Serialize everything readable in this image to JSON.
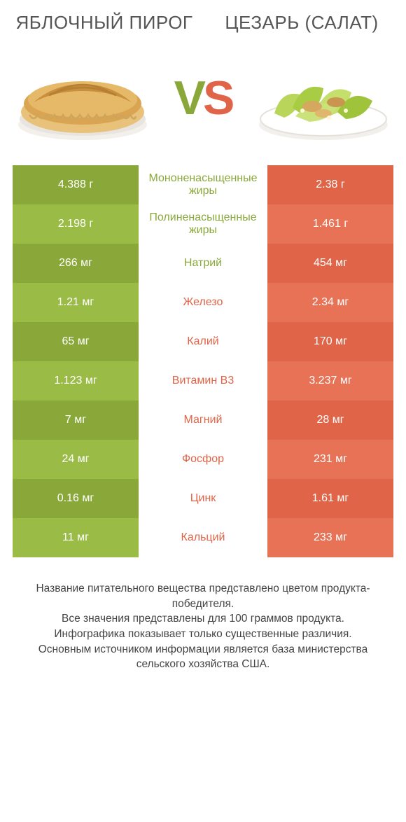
{
  "colors": {
    "green": "#8aa83a",
    "green_alt": "#9bbb47",
    "orange": "#e06448",
    "orange_alt": "#e87256",
    "mid_bg": "#ffffff",
    "text": "#444444",
    "title_text": "#555555"
  },
  "titles": {
    "left": "ЯБЛОЧНЫЙ ПИРОГ",
    "right": "ЦЕЗАРЬ (САЛАТ)"
  },
  "vs": {
    "v": "V",
    "s": "S"
  },
  "rows": [
    {
      "left": "4.388 г",
      "mid": "Мононенасыщенные жиры",
      "right": "2.38 г",
      "winner": "left"
    },
    {
      "left": "2.198 г",
      "mid": "Полиненасыщенные жиры",
      "right": "1.461 г",
      "winner": "left"
    },
    {
      "left": "266 мг",
      "mid": "Натрий",
      "right": "454 мг",
      "winner": "left"
    },
    {
      "left": "1.21 мг",
      "mid": "Железо",
      "right": "2.34 мг",
      "winner": "right"
    },
    {
      "left": "65 мг",
      "mid": "Калий",
      "right": "170 мг",
      "winner": "right"
    },
    {
      "left": "1.123 мг",
      "mid": "Витамин B3",
      "right": "3.237 мг",
      "winner": "right"
    },
    {
      "left": "7 мг",
      "mid": "Магний",
      "right": "28 мг",
      "winner": "right"
    },
    {
      "left": "24 мг",
      "mid": "Фосфор",
      "right": "231 мг",
      "winner": "right"
    },
    {
      "left": "0.16 мг",
      "mid": "Цинк",
      "right": "1.61 мг",
      "winner": "right"
    },
    {
      "left": "11 мг",
      "mid": "Кальций",
      "right": "233 мг",
      "winner": "right"
    }
  ],
  "footnote_lines": [
    "Название питательного вещества представлено цветом продукта-победителя.",
    "Все значения представлены для 100 граммов продукта.",
    "Инфографика показывает только существенные различия.",
    "Основным источником информации является база министерства сельского хозяйства США."
  ]
}
